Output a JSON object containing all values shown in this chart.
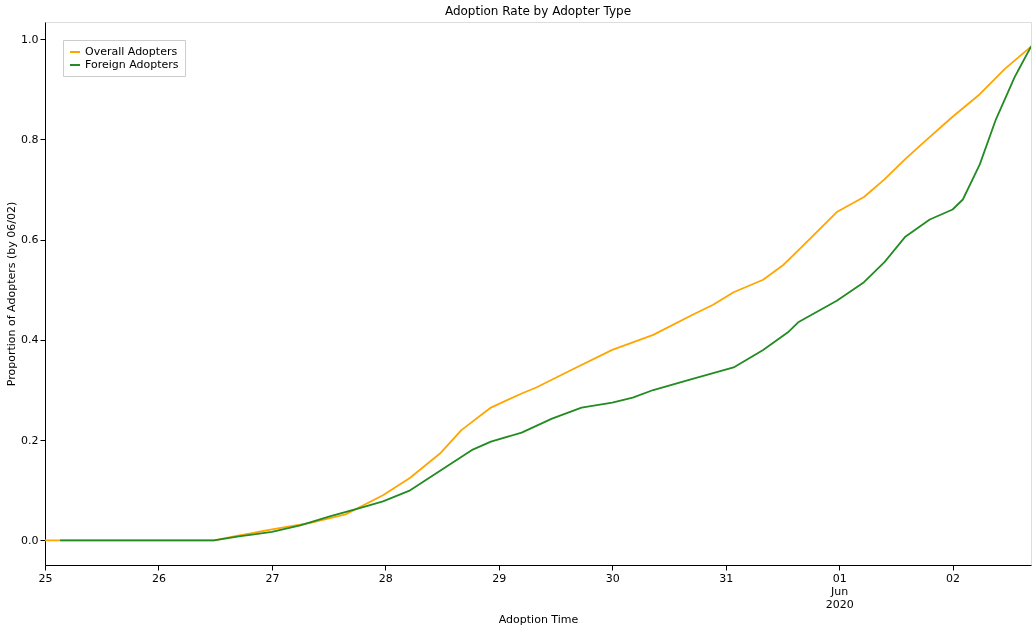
{
  "chart_data": {
    "type": "line",
    "title": "Adoption Rate by Adopter Type",
    "xlabel": "Adoption Time",
    "ylabel": "Proportion of Adopters (by 06/02)",
    "xlim": [
      "2020-05-25T00:00",
      "2020-06-02T16:35"
    ],
    "xticks": [
      {
        "value": "2020-05-25",
        "label": "25"
      },
      {
        "value": "2020-05-26",
        "label": "26"
      },
      {
        "value": "2020-05-27",
        "label": "27"
      },
      {
        "value": "2020-05-28",
        "label": "28"
      },
      {
        "value": "2020-05-29",
        "label": "29"
      },
      {
        "value": "2020-05-30",
        "label": "30"
      },
      {
        "value": "2020-05-31",
        "label": "31"
      },
      {
        "value": "2020-06-01",
        "label": "01\nJun\n2020"
      },
      {
        "value": "2020-06-02",
        "label": "02"
      }
    ],
    "ylim": [
      -0.049,
      1.034
    ],
    "yticks": [
      {
        "value": 0,
        "label": "0.0"
      },
      {
        "value": 0.2,
        "label": "0.2"
      },
      {
        "value": 0.4,
        "label": "0.4"
      },
      {
        "value": 0.6,
        "label": "0.6"
      },
      {
        "value": 0.8,
        "label": "0.8"
      },
      {
        "value": 1,
        "label": "1.0"
      }
    ],
    "grid": false,
    "legend": "top left",
    "line_style": "solid",
    "series": [
      {
        "name": "Overall Adopters",
        "color": "#ffa500",
        "x": [
          "2020-05-25T00:00",
          "2020-05-26T11:45",
          "2020-05-26T16:00",
          "2020-05-27T00:00",
          "2020-05-27T08:10",
          "2020-05-27T15:35",
          "2020-05-27T23:30",
          "2020-05-28T05:15",
          "2020-05-28T11:45",
          "2020-05-28T16:05",
          "2020-05-28T22:20",
          "2020-05-29T04:50",
          "2020-05-29T07:55",
          "2020-05-29T15:20",
          "2020-05-30T00:00",
          "2020-05-30T08:40",
          "2020-05-30T17:00",
          "2020-05-30T21:20",
          "2020-05-31T01:40",
          "2020-05-31T07:55",
          "2020-05-31T12:15",
          "2020-05-31T16:35",
          "2020-05-31T23:30",
          "2020-06-01T05:15",
          "2020-06-01T09:35",
          "2020-06-01T13:55",
          "2020-06-01T18:00",
          "2020-06-02T00:00",
          "2020-06-02T05:45",
          "2020-06-02T11:00",
          "2020-06-02T16:35"
        ],
        "values": [
          0,
          0,
          0.008,
          0.022,
          0.035,
          0.052,
          0.09,
          0.125,
          0.175,
          0.22,
          0.265,
          0.293,
          0.305,
          0.34,
          0.38,
          0.41,
          0.45,
          0.47,
          0.495,
          0.52,
          0.55,
          0.59,
          0.655,
          0.685,
          0.72,
          0.76,
          0.795,
          0.845,
          0.89,
          0.94,
          0.985
        ]
      },
      {
        "name": "Foreign Adopters",
        "color": "#228b22",
        "x": [
          "2020-05-25T03:20",
          "2020-05-26T11:45",
          "2020-05-26T17:00",
          "2020-05-27T00:00",
          "2020-05-27T06:00",
          "2020-05-27T12:15",
          "2020-05-27T18:45",
          "2020-05-27T23:30",
          "2020-05-28T05:15",
          "2020-05-28T11:45",
          "2020-05-28T18:15",
          "2020-05-28T22:20",
          "2020-05-29T04:50",
          "2020-05-29T11:15",
          "2020-05-29T17:30",
          "2020-05-30T00:00",
          "2020-05-30T04:20",
          "2020-05-30T08:40",
          "2020-05-30T17:00",
          "2020-05-31T01:40",
          "2020-05-31T07:55",
          "2020-05-31T13:10",
          "2020-05-31T15:20",
          "2020-05-31T23:30",
          "2020-06-01T05:15",
          "2020-06-01T09:35",
          "2020-06-01T13:55",
          "2020-06-01T19:10",
          "2020-06-02T00:00",
          "2020-06-02T02:10",
          "2020-06-02T05:45",
          "2020-06-02T09:10",
          "2020-06-02T13:10",
          "2020-06-02T16:35"
        ],
        "values": [
          0,
          0,
          0.008,
          0.017,
          0.03,
          0.048,
          0.065,
          0.078,
          0.1,
          0.14,
          0.18,
          0.197,
          0.215,
          0.243,
          0.265,
          0.275,
          0.285,
          0.3,
          0.322,
          0.345,
          0.38,
          0.415,
          0.435,
          0.478,
          0.515,
          0.555,
          0.605,
          0.64,
          0.66,
          0.68,
          0.75,
          0.84,
          0.925,
          0.985
        ]
      }
    ]
  }
}
